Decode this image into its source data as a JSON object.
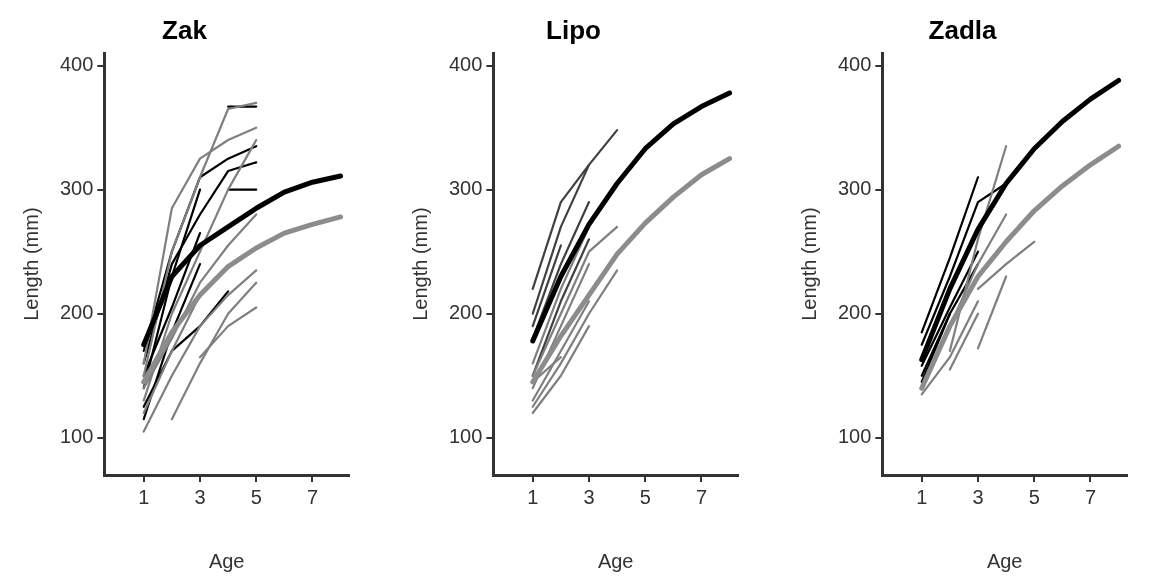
{
  "chart_data": [
    {
      "type": "line",
      "title": "Zak",
      "xlabel": "Age",
      "ylabel": "Length (mm)",
      "xlim": [
        -0.4,
        8.3
      ],
      "xticks": [
        1,
        3,
        5,
        7
      ],
      "ylim": [
        70,
        410
      ],
      "yticks": [
        100,
        200,
        300,
        400
      ],
      "grid": false,
      "legend": false,
      "marker": "none",
      "series": [
        {
          "color": "#7f7f7f",
          "x": [
            1,
            2,
            3,
            4,
            5
          ],
          "values": [
            105,
            150,
            190,
            215,
            235
          ]
        },
        {
          "color": "#7f7f7f",
          "x": [
            1,
            2,
            3
          ],
          "values": [
            120,
            170,
            215
          ]
        },
        {
          "color": "#7f7f7f",
          "x": [
            1,
            2,
            3,
            4,
            5
          ],
          "values": [
            130,
            200,
            250,
            300,
            340
          ]
        },
        {
          "color": "#7f7f7f",
          "x": [
            1,
            2,
            3,
            4,
            5
          ],
          "values": [
            150,
            250,
            310,
            365,
            370
          ]
        },
        {
          "color": "#7f7f7f",
          "x": [
            2,
            3,
            4,
            5
          ],
          "values": [
            115,
            160,
            200,
            225
          ]
        },
        {
          "color": "#7f7f7f",
          "x": [
            1,
            2,
            3,
            4,
            5
          ],
          "values": [
            140,
            180,
            225,
            255,
            280
          ]
        },
        {
          "color": "#7f7f7f",
          "x": [
            1,
            2,
            3,
            4,
            5
          ],
          "values": [
            160,
            285,
            325,
            340,
            350
          ]
        },
        {
          "color": "#7f7f7f",
          "x": [
            3,
            4,
            5
          ],
          "values": [
            165,
            190,
            205
          ]
        },
        {
          "color": "#000000",
          "x": [
            1,
            2,
            3,
            4,
            5
          ],
          "values": [
            170,
            250,
            310,
            325,
            335
          ]
        },
        {
          "color": "#000000",
          "x": [
            1,
            2,
            3
          ],
          "values": [
            115,
            185,
            240
          ]
        },
        {
          "color": "#000000",
          "x": [
            1,
            2,
            3
          ],
          "values": [
            140,
            230,
            300
          ]
        },
        {
          "color": "#000000",
          "x": [
            1,
            2,
            3,
            4
          ],
          "values": [
            125,
            170,
            190,
            218
          ]
        },
        {
          "color": "#000000",
          "x": [
            4,
            5
          ],
          "values": [
            367,
            367
          ]
        },
        {
          "color": "#000000",
          "x": [
            4,
            5
          ],
          "values": [
            300,
            300
          ]
        },
        {
          "color": "#000000",
          "x": [
            1,
            2,
            3,
            4,
            5
          ],
          "values": [
            160,
            240,
            280,
            315,
            322
          ]
        },
        {
          "color": "#000000",
          "x": [
            1,
            2,
            3
          ],
          "values": [
            150,
            205,
            265
          ]
        },
        {
          "color": "#8c8c8c",
          "x": [
            1,
            2,
            3,
            4,
            5,
            6,
            7,
            8
          ],
          "values": [
            145,
            185,
            215,
            238,
            253,
            265,
            272,
            278
          ]
        },
        {
          "color": "#000000",
          "x": [
            1,
            2,
            3,
            4,
            5,
            6,
            7,
            8
          ],
          "values": [
            175,
            230,
            255,
            270,
            285,
            298,
            306,
            311
          ]
        }
      ]
    },
    {
      "type": "line",
      "title": "Lipo",
      "xlabel": "Age",
      "ylabel": "Length (mm)",
      "xlim": [
        -0.4,
        8.3
      ],
      "xticks": [
        1,
        3,
        5,
        7
      ],
      "ylim": [
        70,
        410
      ],
      "yticks": [
        100,
        200,
        300,
        400
      ],
      "grid": false,
      "legend": false,
      "marker": "none",
      "series": [
        {
          "color": "#7f7f7f",
          "x": [
            1,
            2,
            3
          ],
          "values": [
            120,
            150,
            190
          ]
        },
        {
          "color": "#7f7f7f",
          "x": [
            1,
            2,
            3
          ],
          "values": [
            140,
            190,
            240
          ]
        },
        {
          "color": "#7f7f7f",
          "x": [
            1,
            2,
            3
          ],
          "values": [
            160,
            220,
            270
          ]
        },
        {
          "color": "#7f7f7f",
          "x": [
            1,
            2,
            3
          ],
          "values": [
            130,
            170,
            210
          ]
        },
        {
          "color": "#7f7f7f",
          "x": [
            1,
            2,
            3,
            4
          ],
          "values": [
            150,
            200,
            250,
            270
          ]
        },
        {
          "color": "#7f7f7f",
          "x": [
            1,
            2,
            3,
            4
          ],
          "values": [
            125,
            160,
            200,
            235
          ]
        },
        {
          "color": "#7f7f7f",
          "x": [
            1,
            2
          ],
          "values": [
            145,
            165
          ]
        },
        {
          "color": "#404040",
          "x": [
            1,
            2,
            3,
            4
          ],
          "values": [
            200,
            270,
            320,
            348
          ]
        },
        {
          "color": "#404040",
          "x": [
            1,
            2,
            3
          ],
          "values": [
            180,
            240,
            290
          ]
        },
        {
          "color": "#404040",
          "x": [
            1,
            2,
            3
          ],
          "values": [
            220,
            290,
            320
          ]
        },
        {
          "color": "#404040",
          "x": [
            1,
            2,
            3
          ],
          "values": [
            150,
            210,
            260
          ]
        },
        {
          "color": "#404040",
          "x": [
            1,
            2
          ],
          "values": [
            190,
            255
          ]
        },
        {
          "color": "#8c8c8c",
          "x": [
            1,
            2,
            3,
            4,
            5,
            6,
            7,
            8
          ],
          "values": [
            145,
            182,
            215,
            248,
            273,
            294,
            312,
            325
          ]
        },
        {
          "color": "#000000",
          "x": [
            1,
            2,
            3,
            4,
            5,
            6,
            7,
            8
          ],
          "values": [
            178,
            230,
            272,
            305,
            333,
            353,
            367,
            378
          ]
        }
      ]
    },
    {
      "type": "line",
      "title": "Zadla",
      "xlabel": "Age",
      "ylabel": "Length (mm)",
      "xlim": [
        -0.4,
        8.3
      ],
      "xticks": [
        1,
        3,
        5,
        7
      ],
      "ylim": [
        70,
        410
      ],
      "yticks": [
        100,
        200,
        300,
        400
      ],
      "grid": false,
      "legend": false,
      "marker": "none",
      "series": [
        {
          "color": "#7f7f7f",
          "x": [
            1,
            2,
            3
          ],
          "values": [
            135,
            165,
            210
          ]
        },
        {
          "color": "#7f7f7f",
          "x": [
            2,
            3,
            4
          ],
          "values": [
            170,
            260,
            335
          ]
        },
        {
          "color": "#7f7f7f",
          "x": [
            1,
            2,
            3,
            4
          ],
          "values": [
            140,
            190,
            240,
            280
          ]
        },
        {
          "color": "#7f7f7f",
          "x": [
            3,
            4
          ],
          "values": [
            172,
            230
          ]
        },
        {
          "color": "#7f7f7f",
          "x": [
            2,
            3
          ],
          "values": [
            155,
            200
          ]
        },
        {
          "color": "#7f7f7f",
          "x": [
            3,
            4,
            5
          ],
          "values": [
            220,
            240,
            258
          ]
        },
        {
          "color": "#000000",
          "x": [
            1,
            2,
            3
          ],
          "values": [
            158,
            205,
            250
          ]
        },
        {
          "color": "#000000",
          "x": [
            1,
            2,
            3
          ],
          "values": [
            185,
            245,
            310
          ]
        },
        {
          "color": "#000000",
          "x": [
            1,
            2,
            3
          ],
          "values": [
            150,
            200,
            240
          ]
        },
        {
          "color": "#000000",
          "x": [
            1,
            2,
            3,
            4
          ],
          "values": [
            175,
            230,
            290,
            305
          ]
        },
        {
          "color": "#000000",
          "x": [
            1,
            2
          ],
          "values": [
            145,
            200
          ]
        },
        {
          "color": "#8c8c8c",
          "x": [
            1,
            2,
            3,
            4,
            5,
            6,
            7,
            8
          ],
          "values": [
            140,
            190,
            230,
            258,
            283,
            303,
            320,
            335
          ]
        },
        {
          "color": "#000000",
          "x": [
            1,
            2,
            3,
            4,
            5,
            6,
            7,
            8
          ],
          "values": [
            163,
            220,
            268,
            305,
            333,
            355,
            373,
            388
          ]
        }
      ]
    }
  ]
}
